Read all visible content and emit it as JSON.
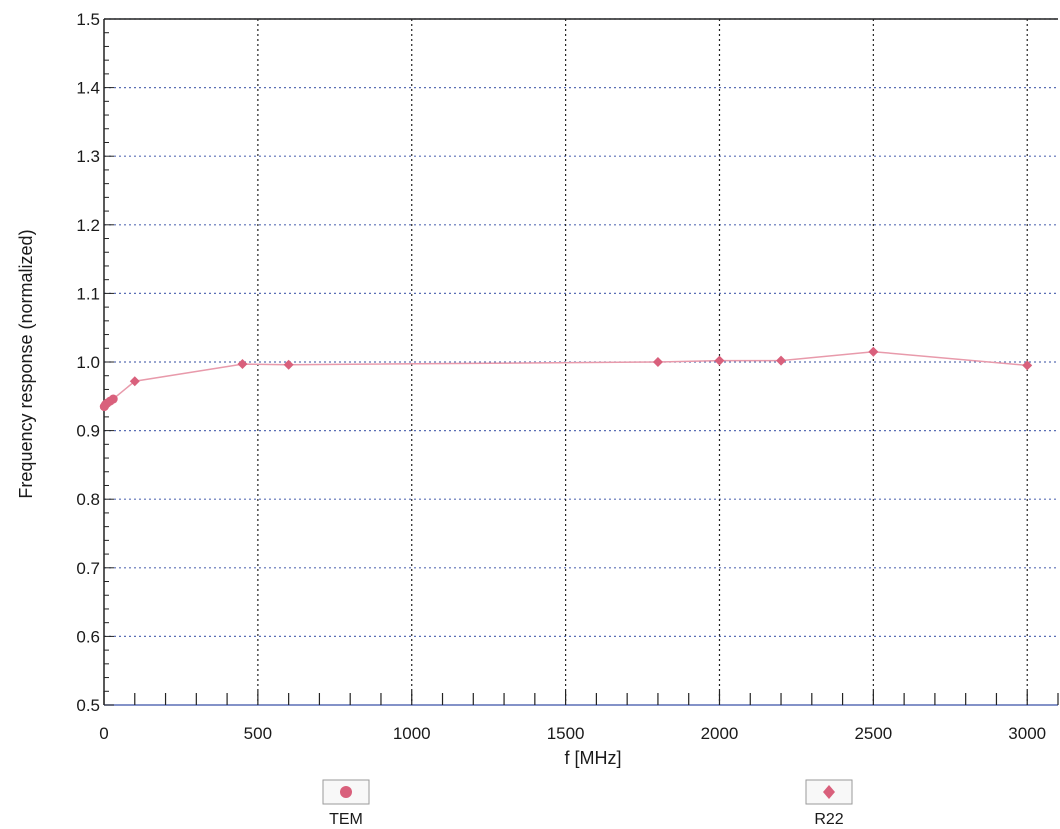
{
  "chart_data": {
    "type": "line",
    "title": "",
    "xlabel": "f [MHz]",
    "ylabel": "Frequency response (normalized)",
    "xlim": [
      0,
      3100
    ],
    "ylim": [
      0.5,
      1.5
    ],
    "x_ticks": [
      0,
      500,
      1000,
      1500,
      2000,
      2500,
      3000
    ],
    "y_ticks": [
      0.5,
      0.6,
      0.7,
      0.8,
      0.9,
      1.0,
      1.1,
      1.2,
      1.3,
      1.4,
      1.5
    ],
    "x_tick_labels": [
      "0",
      "500",
      "1000",
      "1500",
      "2000",
      "2500",
      "3000"
    ],
    "y_tick_labels": [
      "0.5",
      "0.6",
      "0.7",
      "0.8",
      "0.9",
      "1.0",
      "1.1",
      "1.2",
      "1.3",
      "1.4",
      "1.5"
    ],
    "grid": true,
    "legend_position": "bottom",
    "series": [
      {
        "name": "TEM",
        "marker": "circle",
        "color": "#d9607c",
        "x": [
          1,
          5,
          10,
          20,
          30
        ],
        "y": [
          0.935,
          0.938,
          0.94,
          0.943,
          0.946
        ]
      },
      {
        "name": "R22",
        "marker": "diamond",
        "color": "#d9607c",
        "x": [
          100,
          450,
          600,
          1800,
          2000,
          2200,
          2500,
          3000
        ],
        "y": [
          0.972,
          0.997,
          0.996,
          1.0,
          1.002,
          1.002,
          1.015,
          0.995
        ]
      }
    ]
  }
}
